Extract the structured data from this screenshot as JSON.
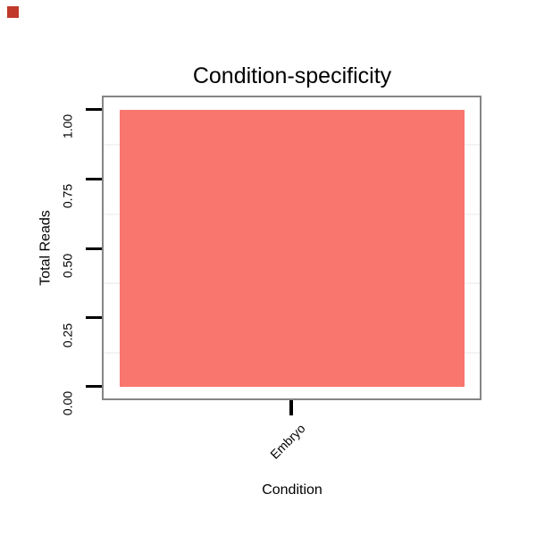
{
  "marker": {
    "name": "red-square-marker",
    "color": "#c0392b"
  },
  "chart_data": {
    "type": "bar",
    "title": "Condition-specificity",
    "xlabel": "Condition",
    "ylabel": "Total Reads",
    "categories": [
      "Embryo"
    ],
    "values": [
      1.0
    ],
    "series": [
      {
        "name": "Embryo",
        "values": [
          1.0
        ]
      }
    ],
    "ylim": [
      0,
      1
    ],
    "y_tick_labels": [
      "0.00",
      "0.25",
      "0.50",
      "0.75",
      "1.00"
    ],
    "y_minor_gridlines": [
      0.125,
      0.375,
      0.625,
      0.875
    ],
    "grid": "minor horizontal only, very light gray on white panel",
    "legend_position": "none",
    "bar_color": "#F8766D",
    "panel_border_color": "#858585",
    "tick_color": "#000000",
    "text_color": "#000000",
    "x_tick_label_angle_deg": 45,
    "y_tick_label_angle_deg": 90
  }
}
